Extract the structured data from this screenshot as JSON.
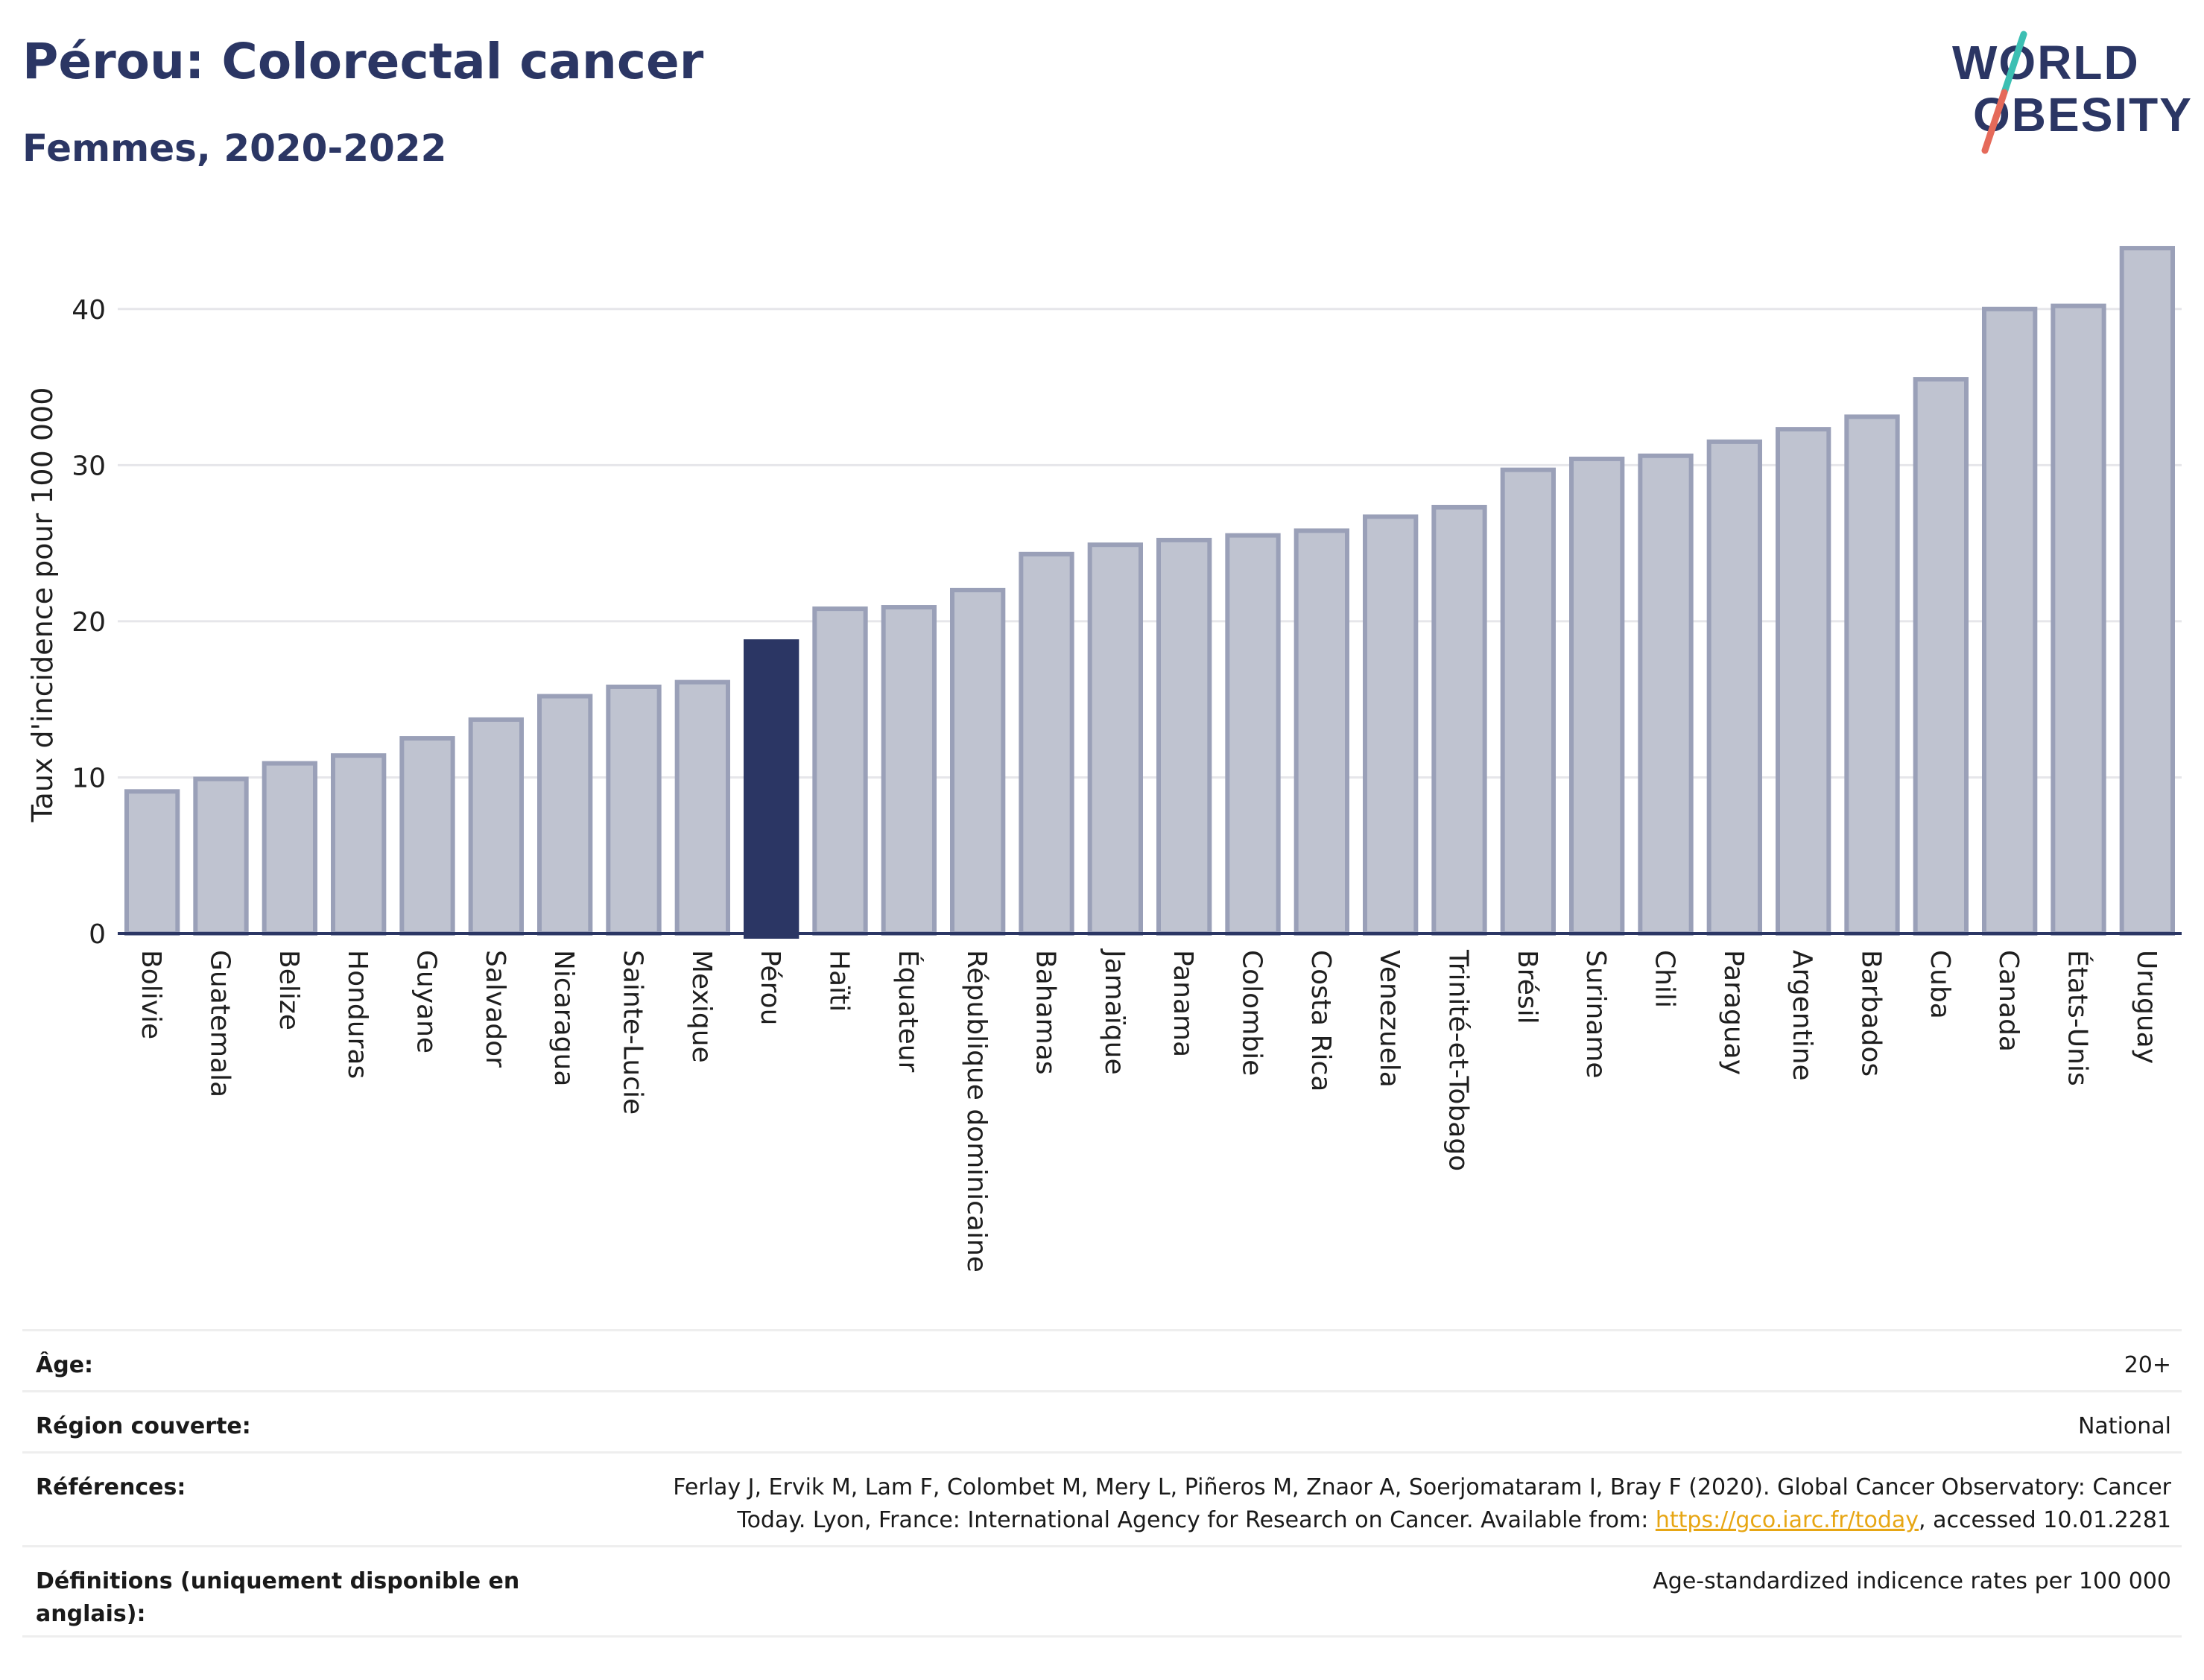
{
  "header": {
    "title": "Pérou: Colorectal cancer",
    "subtitle": "Femmes, 2020-2022"
  },
  "logo": {
    "line1": "WORLD",
    "line2": "OBESITY"
  },
  "chart_data": {
    "type": "bar",
    "ylabel": "Taux d'incidence pour 100 000",
    "ylim": [
      0,
      45
    ],
    "yticks": [
      0,
      10,
      20,
      30,
      40
    ],
    "grid": true,
    "highlight": "Pérou",
    "categories": [
      "Bolivie",
      "Guatemala",
      "Belize",
      "Honduras",
      "Guyane",
      "Salvador",
      "Nicaragua",
      "Sainte-Lucie",
      "Mexique",
      "Pérou",
      "Haïti",
      "Équateur",
      "République dominicaine",
      "Bahamas",
      "Jamaïque",
      "Panama",
      "Colombie",
      "Costa Rica",
      "Venezuela",
      "Trinité-et-Tobago",
      "Brésil",
      "Suriname",
      "Chili",
      "Paraguay",
      "Argentine",
      "Barbados",
      "Cuba",
      "Canada",
      "États-Unis",
      "Uruguay"
    ],
    "values": [
      9.1,
      9.9,
      10.9,
      11.4,
      12.5,
      13.7,
      15.2,
      15.8,
      16.1,
      18.7,
      20.8,
      20.9,
      22.0,
      24.3,
      24.9,
      25.2,
      25.5,
      25.8,
      26.7,
      27.3,
      29.7,
      30.4,
      30.6,
      31.5,
      32.3,
      33.1,
      35.5,
      40.0,
      40.2,
      43.9
    ],
    "colors": {
      "bar": "#bfc3d0",
      "bar_edge": "#9aa0b8",
      "highlight": "#2b3664",
      "axis": "#2b3664",
      "grid": "#e6e6ea"
    }
  },
  "info": {
    "rows": [
      {
        "label": "Âge:",
        "value": "20+"
      },
      {
        "label": "Région couverte:",
        "value": "National"
      },
      {
        "label": "Références:",
        "value_before": "Ferlay J, Ervik M, Lam F, Colombet M, Mery L, Piñeros M, Znaor A, Soerjomataram I, Bray F (2020). Global Cancer Observatory: Cancer Today. Lyon, France: International Agency for Research on Cancer. Available from: ",
        "link": "https://gco.iarc.fr/today",
        "value_after": ", accessed 10.01.2281"
      },
      {
        "label": "Définitions (uniquement disponible en anglais):",
        "value": "Age-standardized indicence rates per 100 000"
      }
    ]
  }
}
